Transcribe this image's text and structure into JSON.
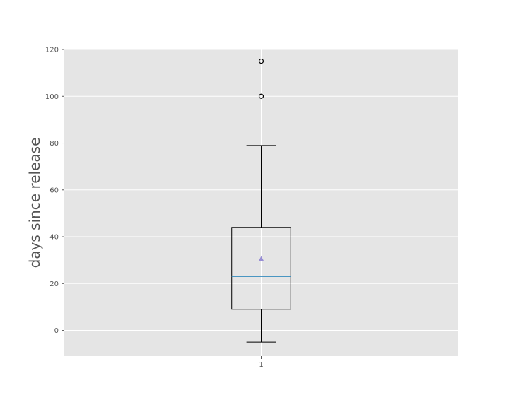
{
  "chart_data": {
    "type": "box",
    "title": "",
    "xlabel": "",
    "ylabel": "days since release",
    "ylim": [
      -11,
      120
    ],
    "yticks": [
      0,
      20,
      40,
      60,
      80,
      100,
      120
    ],
    "categories": [
      "1"
    ],
    "boxes": [
      {
        "category": "1",
        "whisker_low": -5,
        "q1": 9,
        "median": 23,
        "q3": 44,
        "whisker_high": 79,
        "mean": 30.5,
        "outliers": [
          100,
          115
        ]
      }
    ],
    "grid": true,
    "legend": "none",
    "colors": {
      "plot_background": "#e5e5e5",
      "grid": "#ffffff",
      "box": "#000000",
      "median": "#348abd",
      "mean_marker": "#988ed5",
      "text": "#555555"
    }
  }
}
